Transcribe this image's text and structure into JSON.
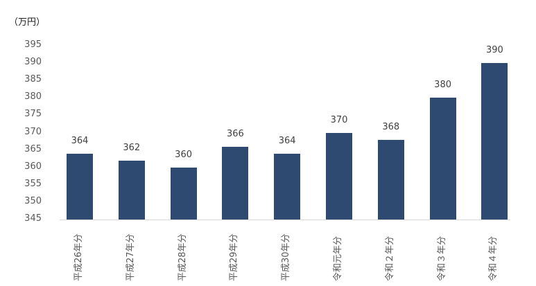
{
  "chart_data": {
    "type": "bar",
    "title": "",
    "unit_label": "（万円）",
    "xlabel": "",
    "ylabel": "（万円）",
    "ylim": [
      345,
      395
    ],
    "yticks": [
      395,
      390,
      385,
      380,
      375,
      370,
      365,
      360,
      355,
      350,
      345
    ],
    "grid": false,
    "legend": null,
    "bar_color": "#2E4A70",
    "categories": [
      "平成26年分",
      "平成27年分",
      "平成28年分",
      "平成29年分",
      "平成30年分",
      "令和元年分",
      "令和２年分",
      "令和３年分",
      "令和４年分"
    ],
    "values": [
      364,
      362,
      360,
      366,
      364,
      370,
      368,
      380,
      390
    ],
    "data_labels": [
      "364",
      "362",
      "360",
      "366",
      "364",
      "370",
      "368",
      "380",
      "390"
    ]
  }
}
